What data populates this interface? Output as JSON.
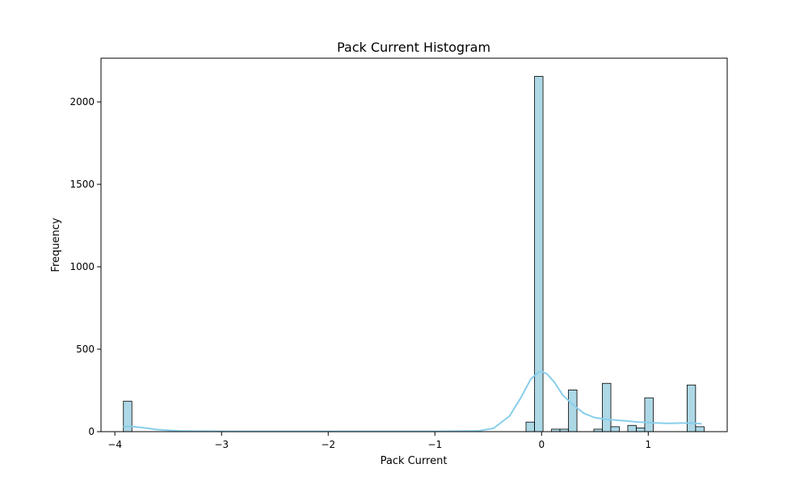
{
  "chart_data": {
    "type": "bar",
    "title": "Pack Current Histogram",
    "xlabel": "Pack Current",
    "ylabel": "Frequency",
    "xlim": [
      -4.13,
      1.74
    ],
    "ylim": [
      0,
      2265
    ],
    "x_ticks": [
      -4,
      -3,
      -2,
      -1,
      0,
      1
    ],
    "x_tick_labels": [
      "−4",
      "−3",
      "−2",
      "−1",
      "0",
      "1"
    ],
    "y_ticks": [
      0,
      500,
      1000,
      1500,
      2000
    ],
    "y_tick_labels": [
      "0",
      "500",
      "1000",
      "1500",
      "2000"
    ],
    "grid": false,
    "legend": "none",
    "bar_color": "#add8e6",
    "kde_color": "#87ceeb",
    "bin_width": 0.0795,
    "bins": [
      {
        "x0": -3.92,
        "count": 185
      },
      {
        "x0": -0.146,
        "count": 58
      },
      {
        "x0": -0.066,
        "count": 2155
      },
      {
        "x0": 0.093,
        "count": 15
      },
      {
        "x0": 0.172,
        "count": 15
      },
      {
        "x0": 0.252,
        "count": 253
      },
      {
        "x0": 0.49,
        "count": 15
      },
      {
        "x0": 0.57,
        "count": 293
      },
      {
        "x0": 0.649,
        "count": 30
      },
      {
        "x0": 0.808,
        "count": 38
      },
      {
        "x0": 0.888,
        "count": 22
      },
      {
        "x0": 0.967,
        "count": 205
      },
      {
        "x0": 1.364,
        "count": 283
      },
      {
        "x0": 1.444,
        "count": 30
      }
    ],
    "kde": {
      "x": [
        -3.92,
        -3.85,
        -3.75,
        -3.6,
        -3.4,
        -3.0,
        -2.0,
        -1.0,
        -0.6,
        -0.45,
        -0.3,
        -0.2,
        -0.1,
        -0.03,
        0.0,
        0.05,
        0.12,
        0.2,
        0.3,
        0.4,
        0.5,
        0.6,
        0.7,
        0.8,
        0.9,
        1.0,
        1.1,
        1.2,
        1.3,
        1.4,
        1.5
      ],
      "y": [
        30,
        32,
        25,
        12,
        4,
        2,
        2,
        2,
        4,
        20,
        95,
        200,
        320,
        360,
        365,
        350,
        300,
        220,
        160,
        110,
        85,
        75,
        70,
        65,
        58,
        55,
        52,
        50,
        52,
        52,
        48
      ]
    }
  }
}
